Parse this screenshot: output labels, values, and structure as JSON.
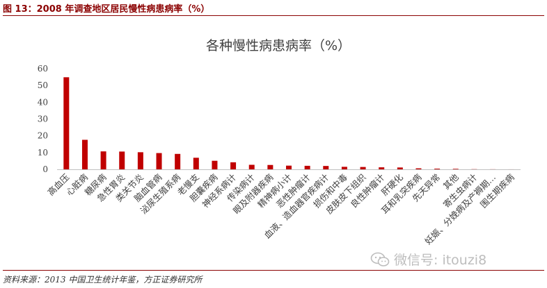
{
  "figure_title": "图 13：2008 年调查地区居民慢性病患病率（%）",
  "source_note": "资料来源：2013 中国卫生统计年鉴，方正证券研究所",
  "watermark": {
    "text": "微信号: itouzi8",
    "icon": "wechat-icon"
  },
  "colors": {
    "bar": "#c00000",
    "accent": "#8b0000"
  },
  "chart_data": {
    "type": "bar",
    "title": "各种慢性病患病率（%）",
    "xlabel": "",
    "ylabel": "",
    "ylim": [
      0,
      60
    ],
    "yticks": [
      0,
      10,
      20,
      30,
      40,
      50,
      60
    ],
    "grid": false,
    "categories": [
      "高血压",
      "心脏病",
      "糖尿病",
      "急性胃炎",
      "类关节炎",
      "脑血管病",
      "泌尿生殖系病",
      "老慢支",
      "胆囊疾病",
      "神经系病计",
      "传染病计",
      "眼及附器疾病",
      "精神病小计",
      "恶性肿瘤计",
      "血液、造血器官疾病计",
      "损伤和中毒",
      "皮肤皮下组织",
      "良性肿瘤计",
      "肝硬化",
      "耳和乳突疾病",
      "先天异常",
      "其他",
      "寄生虫病计",
      "妊娠、分娩病及产褥期…",
      "围生期疾病"
    ],
    "values": [
      54.9,
      17.6,
      10.7,
      10.6,
      10.2,
      9.7,
      9.2,
      6.9,
      5.1,
      4.2,
      2.7,
      2.6,
      2.2,
      2.1,
      2.0,
      1.5,
      1.4,
      1.2,
      1.1,
      0.6,
      0.4,
      0.3,
      0.1,
      0.05,
      0.02
    ]
  }
}
